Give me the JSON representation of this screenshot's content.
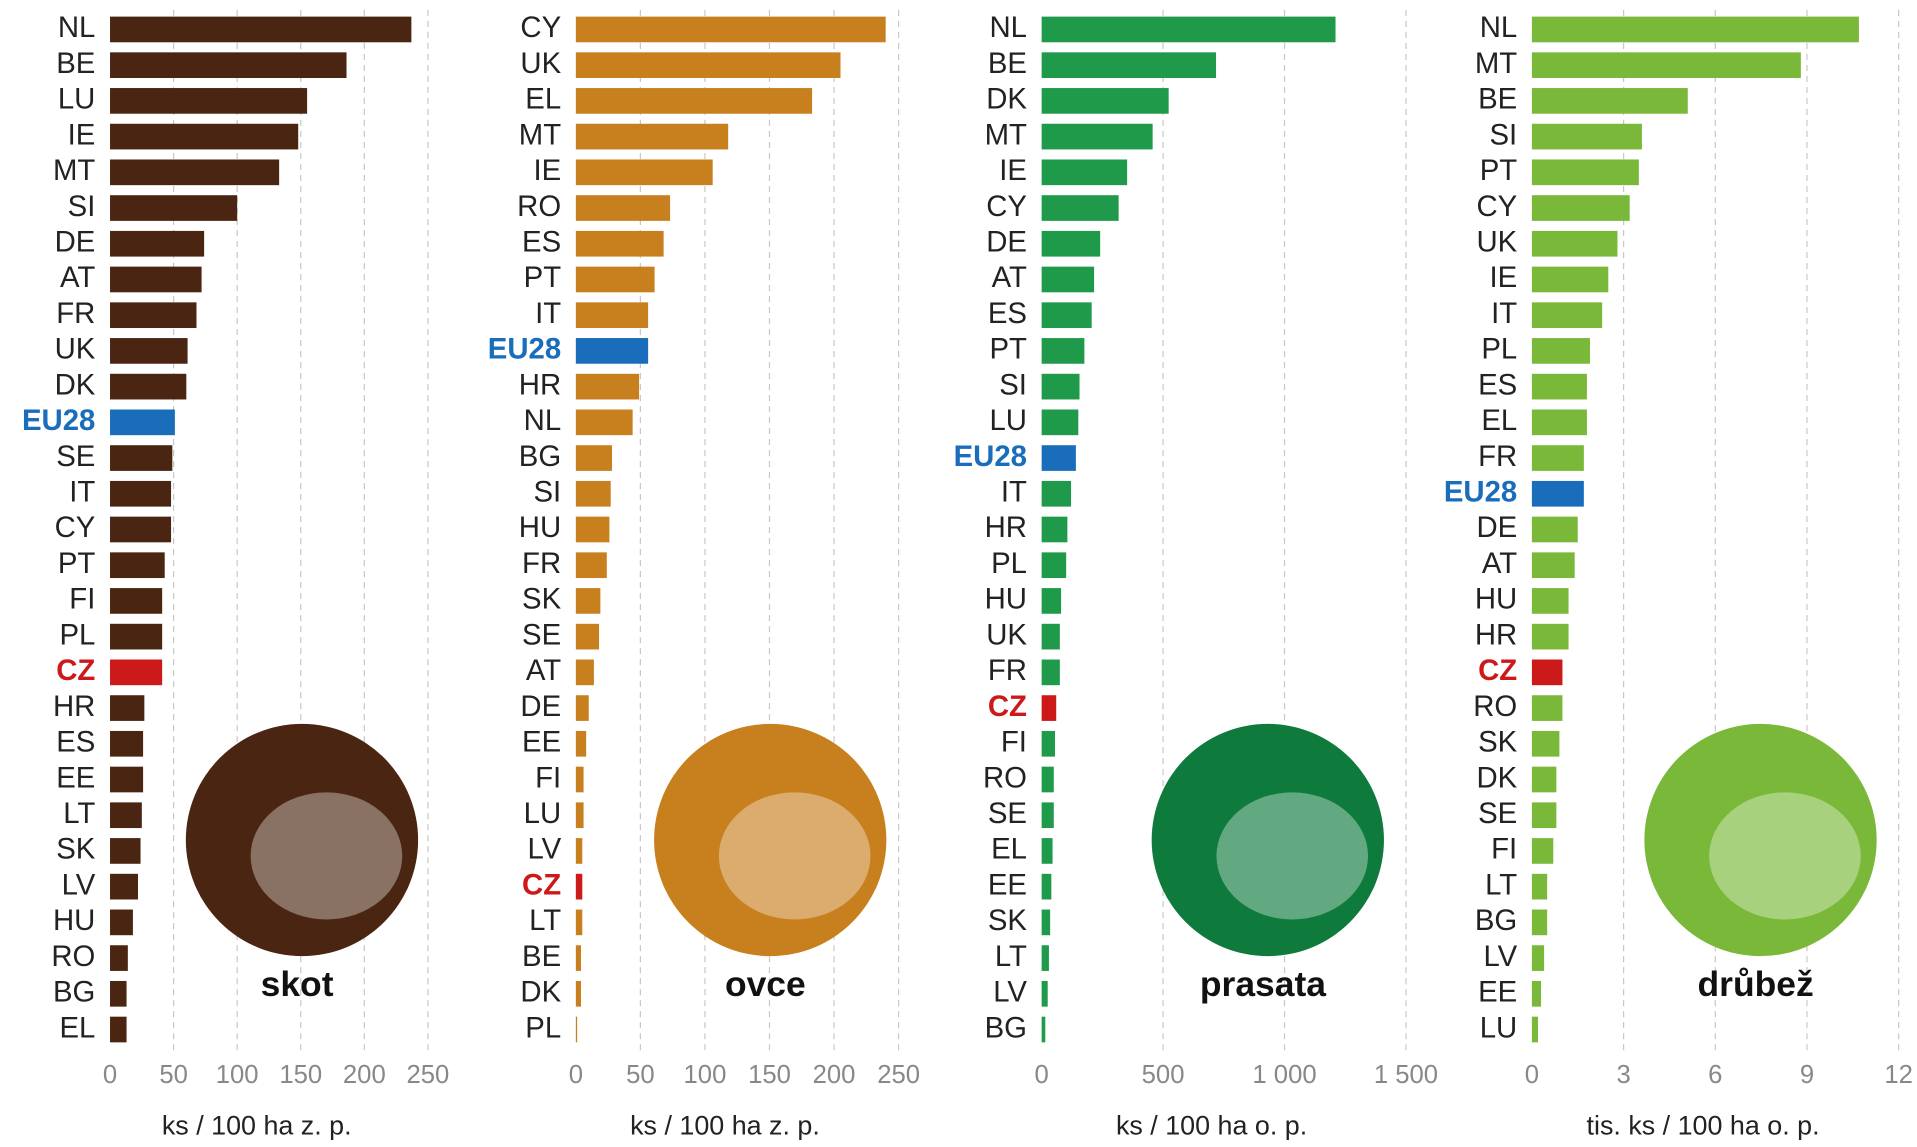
{
  "chart_data": [
    {
      "type": "barh",
      "label": "skot",
      "xlabel": "ks / 100 ha z. p.",
      "color": "#4a2511",
      "icon_color": "#4a2511",
      "highlight_colors": {
        "EU28": "#1a6dba",
        "CZ": "#cc1a1a"
      },
      "categories": [
        "NL",
        "BE",
        "LU",
        "IE",
        "MT",
        "SI",
        "DE",
        "AT",
        "FR",
        "UK",
        "DK",
        "EU28",
        "SE",
        "IT",
        "CY",
        "PT",
        "FI",
        "PL",
        "CZ",
        "HR",
        "ES",
        "EE",
        "LT",
        "SK",
        "LV",
        "HU",
        "RO",
        "BG",
        "EL"
      ],
      "values": [
        237,
        186,
        155,
        148,
        133,
        100,
        74,
        72,
        68,
        61,
        60,
        51,
        49,
        48,
        48,
        43,
        41,
        41,
        41,
        27,
        26,
        26,
        25,
        24,
        22,
        18,
        14,
        13,
        13
      ],
      "xlim": [
        0,
        250
      ],
      "xticks": [
        0,
        50,
        100,
        150,
        200,
        250
      ],
      "grid": true
    },
    {
      "type": "barh",
      "label": "ovce",
      "xlabel": "ks / 100 ha z. p.",
      "color": "#c8801f",
      "icon_color": "#c8801f",
      "highlight_colors": {
        "EU28": "#1a6dba",
        "CZ": "#cc1a1a"
      },
      "categories": [
        "CY",
        "UK",
        "EL",
        "MT",
        "IE",
        "RO",
        "ES",
        "PT",
        "IT",
        "EU28",
        "HR",
        "NL",
        "BG",
        "SI",
        "HU",
        "FR",
        "SK",
        "SE",
        "AT",
        "DE",
        "EE",
        "FI",
        "LU",
        "LV",
        "CZ",
        "LT",
        "BE",
        "DK",
        "PL"
      ],
      "values": [
        240,
        205,
        183,
        118,
        106,
        73,
        68,
        61,
        56,
        56,
        49,
        44,
        28,
        27,
        26,
        24,
        19,
        18,
        14,
        10,
        8,
        6,
        6,
        5,
        5,
        5,
        4,
        4,
        1
      ],
      "xlim": [
        0,
        250
      ],
      "xticks": [
        0,
        50,
        100,
        150,
        200,
        250
      ],
      "grid": true
    },
    {
      "type": "barh",
      "label": "prasata",
      "xlabel": "ks / 100 ha o. p.",
      "color": "#1f9a4b",
      "icon_color": "#0e7a3c",
      "highlight_colors": {
        "EU28": "#1a6dba",
        "CZ": "#cc1a1a"
      },
      "categories": [
        "NL",
        "BE",
        "DK",
        "MT",
        "IE",
        "CY",
        "DE",
        "AT",
        "ES",
        "PT",
        "SI",
        "LU",
        "EU28",
        "IT",
        "HR",
        "PL",
        "HU",
        "UK",
        "FR",
        "CZ",
        "FI",
        "RO",
        "SE",
        "EL",
        "EE",
        "SK",
        "LT",
        "LV",
        "BG"
      ],
      "values": [
        1210,
        718,
        523,
        457,
        352,
        317,
        241,
        216,
        206,
        176,
        156,
        151,
        141,
        121,
        106,
        101,
        80,
        75,
        75,
        60,
        55,
        50,
        50,
        45,
        40,
        35,
        30,
        25,
        15
      ],
      "xlim": [
        0,
        1500
      ],
      "xticks": [
        0,
        500,
        {
          "value": 1000,
          "label": "1 000"
        },
        {
          "value": 1500,
          "label": "1 500"
        }
      ],
      "grid": true
    },
    {
      "type": "barh",
      "label": "drůbež",
      "xlabel": "tis. ks / 100 ha o. p.",
      "color": "#7ab83a",
      "icon_color": "#7ab83a",
      "highlight_colors": {
        "EU28": "#1a6dba",
        "CZ": "#cc1a1a"
      },
      "categories": [
        "NL",
        "MT",
        "BE",
        "SI",
        "PT",
        "CY",
        "UK",
        "IE",
        "IT",
        "PL",
        "ES",
        "EL",
        "FR",
        "EU28",
        "DE",
        "AT",
        "HU",
        "HR",
        "CZ",
        "RO",
        "SK",
        "DK",
        "SE",
        "FI",
        "LT",
        "BG",
        "LV",
        "EE",
        "LU"
      ],
      "values": [
        10.7,
        8.8,
        5.1,
        3.6,
        3.5,
        3.2,
        2.8,
        2.5,
        2.3,
        1.9,
        1.8,
        1.8,
        1.7,
        1.7,
        1.5,
        1.4,
        1.2,
        1.2,
        1.0,
        1.0,
        0.9,
        0.8,
        0.8,
        0.7,
        0.5,
        0.5,
        0.4,
        0.3,
        0.2
      ],
      "xlim": [
        0,
        12
      ],
      "xticks": [
        0,
        3,
        6,
        9,
        12
      ],
      "grid": true
    }
  ]
}
